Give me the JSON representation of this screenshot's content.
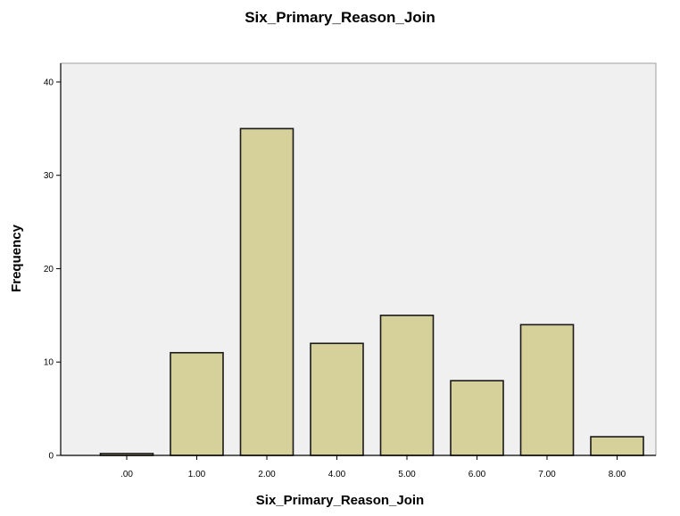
{
  "chart_data": {
    "type": "bar",
    "title": "Six_Primary_Reason_Join",
    "xlabel": "Six_Primary_Reason_Join",
    "ylabel": "Frequency",
    "categories": [
      ".00",
      "1.00",
      "2.00",
      "4.00",
      "5.00",
      "6.00",
      "7.00",
      "8.00"
    ],
    "values": [
      0.2,
      11,
      35,
      12,
      15,
      8,
      14,
      2
    ],
    "ylim": [
      0,
      42
    ],
    "yticks": [
      "0",
      "10",
      "20",
      "30",
      "40"
    ],
    "grid": false,
    "legend": "none",
    "colors": {
      "bar_fill": "#d6d09a",
      "bar_stroke": "#1a1a1a",
      "plot_background": "#f0f0f0",
      "axis": "#000000"
    }
  }
}
